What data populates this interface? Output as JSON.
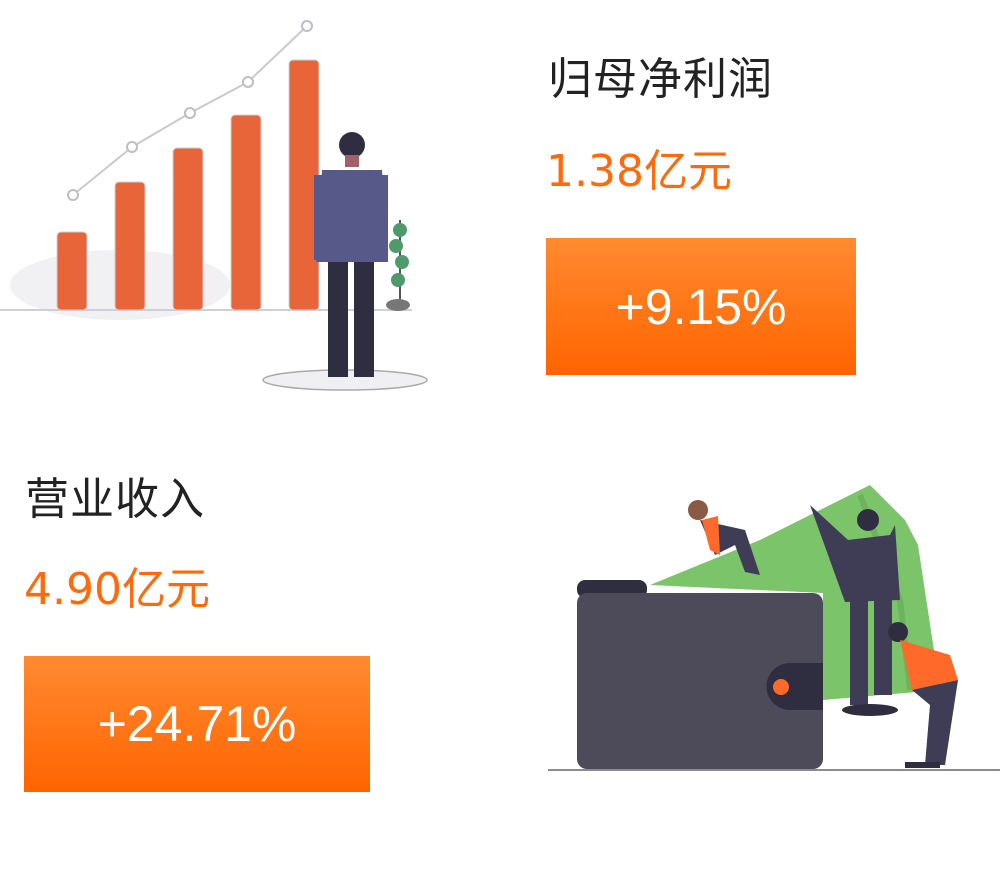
{
  "metrics": [
    {
      "label": "归母净利润",
      "value": "1.38亿元",
      "change": "+9.15%"
    },
    {
      "label": "营业收入",
      "value": "4.90亿元",
      "change": "+24.71%"
    }
  ],
  "colors": {
    "accent": "#ff6a0a",
    "badge_top": "#ff8a30",
    "badge_bottom": "#ff6400",
    "bar": "#e8653a",
    "wallet": "#4d4b5a",
    "money": "#7cc46a"
  },
  "illustrations": [
    "growth-bar-chart-with-businessman",
    "wallet-with-money-and-people"
  ]
}
